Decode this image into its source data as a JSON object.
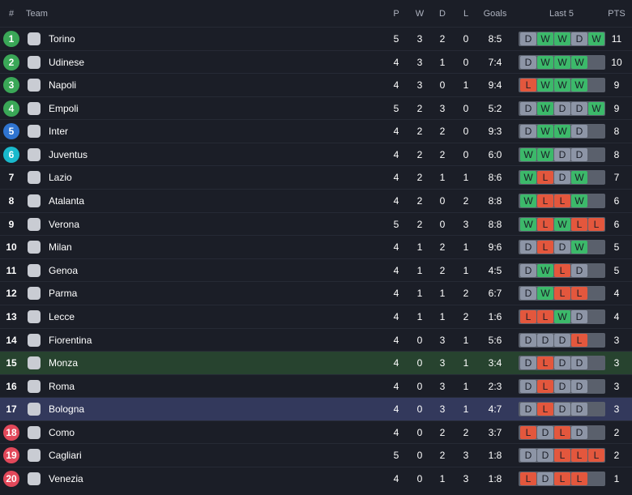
{
  "header": {
    "rank": "#",
    "team": "Team",
    "played": "P",
    "won": "W",
    "drawn": "D",
    "lost": "L",
    "goals": "Goals",
    "form": "Last 5",
    "points": "PTS"
  },
  "rows": [
    {
      "rank": 1,
      "team": "Torino",
      "p": 5,
      "w": 3,
      "d": 2,
      "l": 0,
      "goals": "8:5",
      "last5": [
        "D",
        "W",
        "W",
        "D",
        "W"
      ],
      "pts": 11
    },
    {
      "rank": 2,
      "team": "Udinese",
      "p": 4,
      "w": 3,
      "d": 1,
      "l": 0,
      "goals": "7:4",
      "last5": [
        "D",
        "W",
        "W",
        "W"
      ],
      "pts": 10
    },
    {
      "rank": 3,
      "team": "Napoli",
      "p": 4,
      "w": 3,
      "d": 0,
      "l": 1,
      "goals": "9:4",
      "last5": [
        "L",
        "W",
        "W",
        "W"
      ],
      "pts": 9
    },
    {
      "rank": 4,
      "team": "Empoli",
      "p": 5,
      "w": 2,
      "d": 3,
      "l": 0,
      "goals": "5:2",
      "last5": [
        "D",
        "W",
        "D",
        "D",
        "W"
      ],
      "pts": 9
    },
    {
      "rank": 5,
      "team": "Inter",
      "p": 4,
      "w": 2,
      "d": 2,
      "l": 0,
      "goals": "9:3",
      "last5": [
        "D",
        "W",
        "W",
        "D"
      ],
      "pts": 8
    },
    {
      "rank": 6,
      "team": "Juventus",
      "p": 4,
      "w": 2,
      "d": 2,
      "l": 0,
      "goals": "6:0",
      "last5": [
        "W",
        "W",
        "D",
        "D"
      ],
      "pts": 8
    },
    {
      "rank": 7,
      "team": "Lazio",
      "p": 4,
      "w": 2,
      "d": 1,
      "l": 1,
      "goals": "8:6",
      "last5": [
        "W",
        "L",
        "D",
        "W"
      ],
      "pts": 7
    },
    {
      "rank": 8,
      "team": "Atalanta",
      "p": 4,
      "w": 2,
      "d": 0,
      "l": 2,
      "goals": "8:8",
      "last5": [
        "W",
        "L",
        "L",
        "W"
      ],
      "pts": 6
    },
    {
      "rank": 9,
      "team": "Verona",
      "p": 5,
      "w": 2,
      "d": 0,
      "l": 3,
      "goals": "8:8",
      "last5": [
        "W",
        "L",
        "W",
        "L",
        "L"
      ],
      "pts": 6
    },
    {
      "rank": 10,
      "team": "Milan",
      "p": 4,
      "w": 1,
      "d": 2,
      "l": 1,
      "goals": "9:6",
      "last5": [
        "D",
        "L",
        "D",
        "W"
      ],
      "pts": 5
    },
    {
      "rank": 11,
      "team": "Genoa",
      "p": 4,
      "w": 1,
      "d": 2,
      "l": 1,
      "goals": "4:5",
      "last5": [
        "D",
        "W",
        "L",
        "D"
      ],
      "pts": 5
    },
    {
      "rank": 12,
      "team": "Parma",
      "p": 4,
      "w": 1,
      "d": 1,
      "l": 2,
      "goals": "6:7",
      "last5": [
        "D",
        "W",
        "L",
        "L"
      ],
      "pts": 4
    },
    {
      "rank": 13,
      "team": "Lecce",
      "p": 4,
      "w": 1,
      "d": 1,
      "l": 2,
      "goals": "1:6",
      "last5": [
        "L",
        "L",
        "W",
        "D"
      ],
      "pts": 4
    },
    {
      "rank": 14,
      "team": "Fiorentina",
      "p": 4,
      "w": 0,
      "d": 3,
      "l": 1,
      "goals": "5:6",
      "last5": [
        "D",
        "D",
        "D",
        "L"
      ],
      "pts": 3
    },
    {
      "rank": 15,
      "team": "Monza",
      "p": 4,
      "w": 0,
      "d": 3,
      "l": 1,
      "goals": "3:4",
      "last5": [
        "D",
        "L",
        "D",
        "D"
      ],
      "pts": 3
    },
    {
      "rank": 16,
      "team": "Roma",
      "p": 4,
      "w": 0,
      "d": 3,
      "l": 1,
      "goals": "2:3",
      "last5": [
        "D",
        "L",
        "D",
        "D"
      ],
      "pts": 3
    },
    {
      "rank": 17,
      "team": "Bologna",
      "p": 4,
      "w": 0,
      "d": 3,
      "l": 1,
      "goals": "4:7",
      "last5": [
        "D",
        "L",
        "D",
        "D"
      ],
      "pts": 3
    },
    {
      "rank": 18,
      "team": "Como",
      "p": 4,
      "w": 0,
      "d": 2,
      "l": 2,
      "goals": "3:7",
      "last5": [
        "L",
        "D",
        "L",
        "D"
      ],
      "pts": 2
    },
    {
      "rank": 19,
      "team": "Cagliari",
      "p": 5,
      "w": 0,
      "d": 2,
      "l": 3,
      "goals": "1:8",
      "last5": [
        "D",
        "D",
        "L",
        "L",
        "L"
      ],
      "pts": 2
    },
    {
      "rank": 20,
      "team": "Venezia",
      "p": 4,
      "w": 0,
      "d": 1,
      "l": 3,
      "goals": "1:8",
      "last5": [
        "L",
        "D",
        "L",
        "L"
      ],
      "pts": 1
    }
  ]
}
